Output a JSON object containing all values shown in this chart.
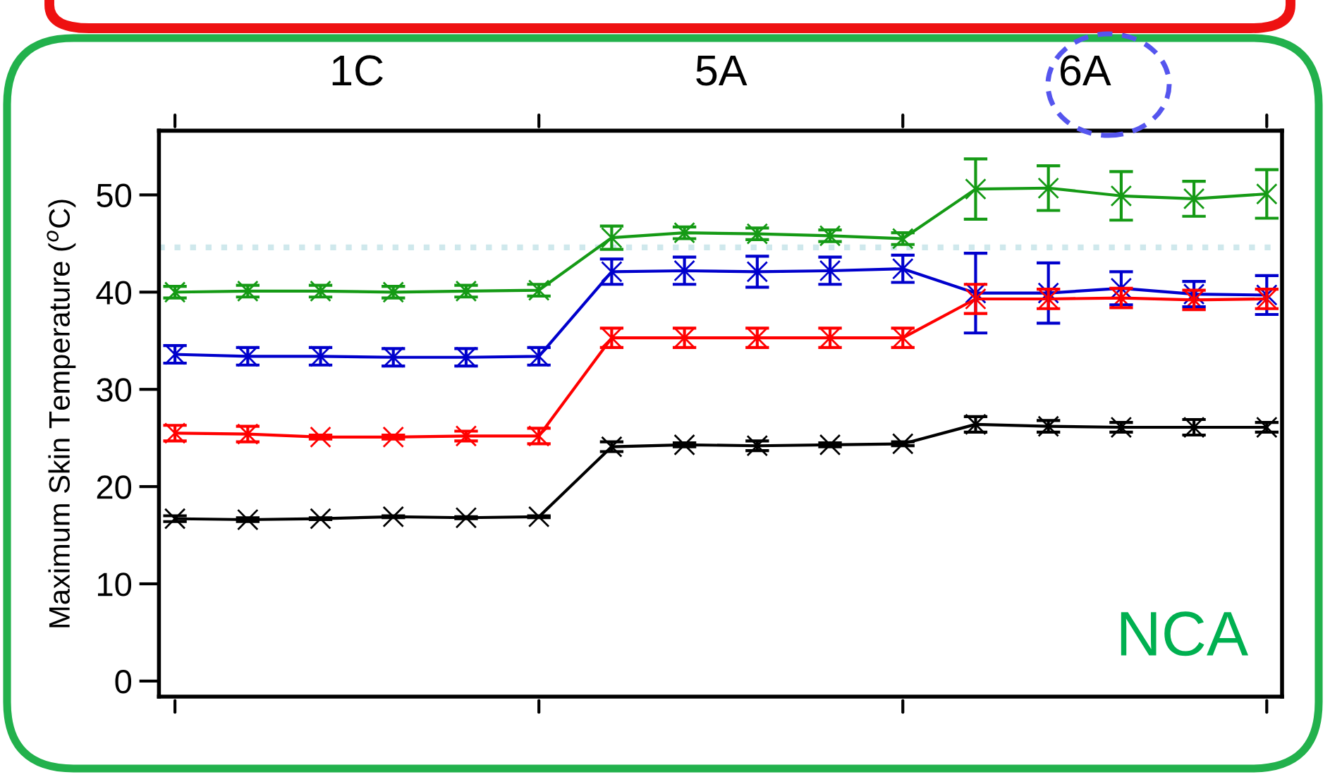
{
  "chart_data": {
    "type": "line",
    "ylabel": "Maximum Skin Temperature ($^{o}$C)",
    "categories": [
      null,
      null,
      null,
      null,
      null,
      null,
      null,
      null,
      null,
      null,
      null,
      null,
      null,
      null,
      null,
      null
    ],
    "ylim": [
      -1.6,
      56.6
    ],
    "yticks": [
      0,
      10,
      20,
      30,
      40,
      50
    ],
    "grid": false,
    "legend": false,
    "marker": "cross",
    "line_style": "solid",
    "series": [
      {
        "color": "#159a15",
        "values": [
          40.0,
          40.1,
          40.1,
          40.0,
          40.1,
          40.2,
          45.6,
          46.1,
          46.0,
          45.8,
          45.5,
          50.6,
          50.7,
          49.9,
          49.6,
          50.1
        ],
        "errors": [
          0.6,
          0.6,
          0.6,
          0.6,
          0.6,
          0.6,
          1.2,
          0.6,
          0.6,
          0.6,
          0.6,
          3.1,
          2.3,
          2.5,
          1.8,
          2.5
        ]
      },
      {
        "color": "#0000cc",
        "values": [
          33.6,
          33.4,
          33.4,
          33.3,
          33.3,
          33.4,
          42.1,
          42.2,
          42.1,
          42.2,
          42.4,
          39.9,
          39.9,
          40.4,
          39.8,
          39.7
        ],
        "errors": [
          0.9,
          0.9,
          0.9,
          0.9,
          0.9,
          0.9,
          1.3,
          1.4,
          1.6,
          1.4,
          1.4,
          4.1,
          3.1,
          1.7,
          1.3,
          2.0
        ]
      },
      {
        "color": "#ff0000",
        "values": [
          25.5,
          25.4,
          25.1,
          25.1,
          25.2,
          25.2,
          35.3,
          35.3,
          35.3,
          35.3,
          35.3,
          39.3,
          39.3,
          39.4,
          39.2,
          39.3
        ],
        "errors": [
          0.8,
          0.8,
          0.2,
          0.2,
          0.5,
          0.8,
          1.0,
          1.0,
          1.0,
          1.0,
          1.0,
          1.5,
          1.0,
          1.0,
          1.0,
          1.0
        ]
      },
      {
        "color": "#000000",
        "values": [
          16.7,
          16.6,
          16.7,
          16.9,
          16.8,
          16.9,
          24.1,
          24.3,
          24.2,
          24.3,
          24.4,
          26.4,
          26.2,
          26.1,
          26.1,
          26.1
        ],
        "errors": [
          0.3,
          0.2,
          0.1,
          0.1,
          0.1,
          0.1,
          0.5,
          0.2,
          0.5,
          0.2,
          0.2,
          0.8,
          0.6,
          0.5,
          0.8,
          0.5
        ]
      }
    ],
    "ref_lines": [
      {
        "axis": "y",
        "value": 44.6,
        "label": null,
        "color": "#cfe8ec",
        "line_style": "dotted"
      }
    ],
    "annotations": [
      "1C",
      "5A",
      "6A",
      "NCA"
    ]
  }
}
